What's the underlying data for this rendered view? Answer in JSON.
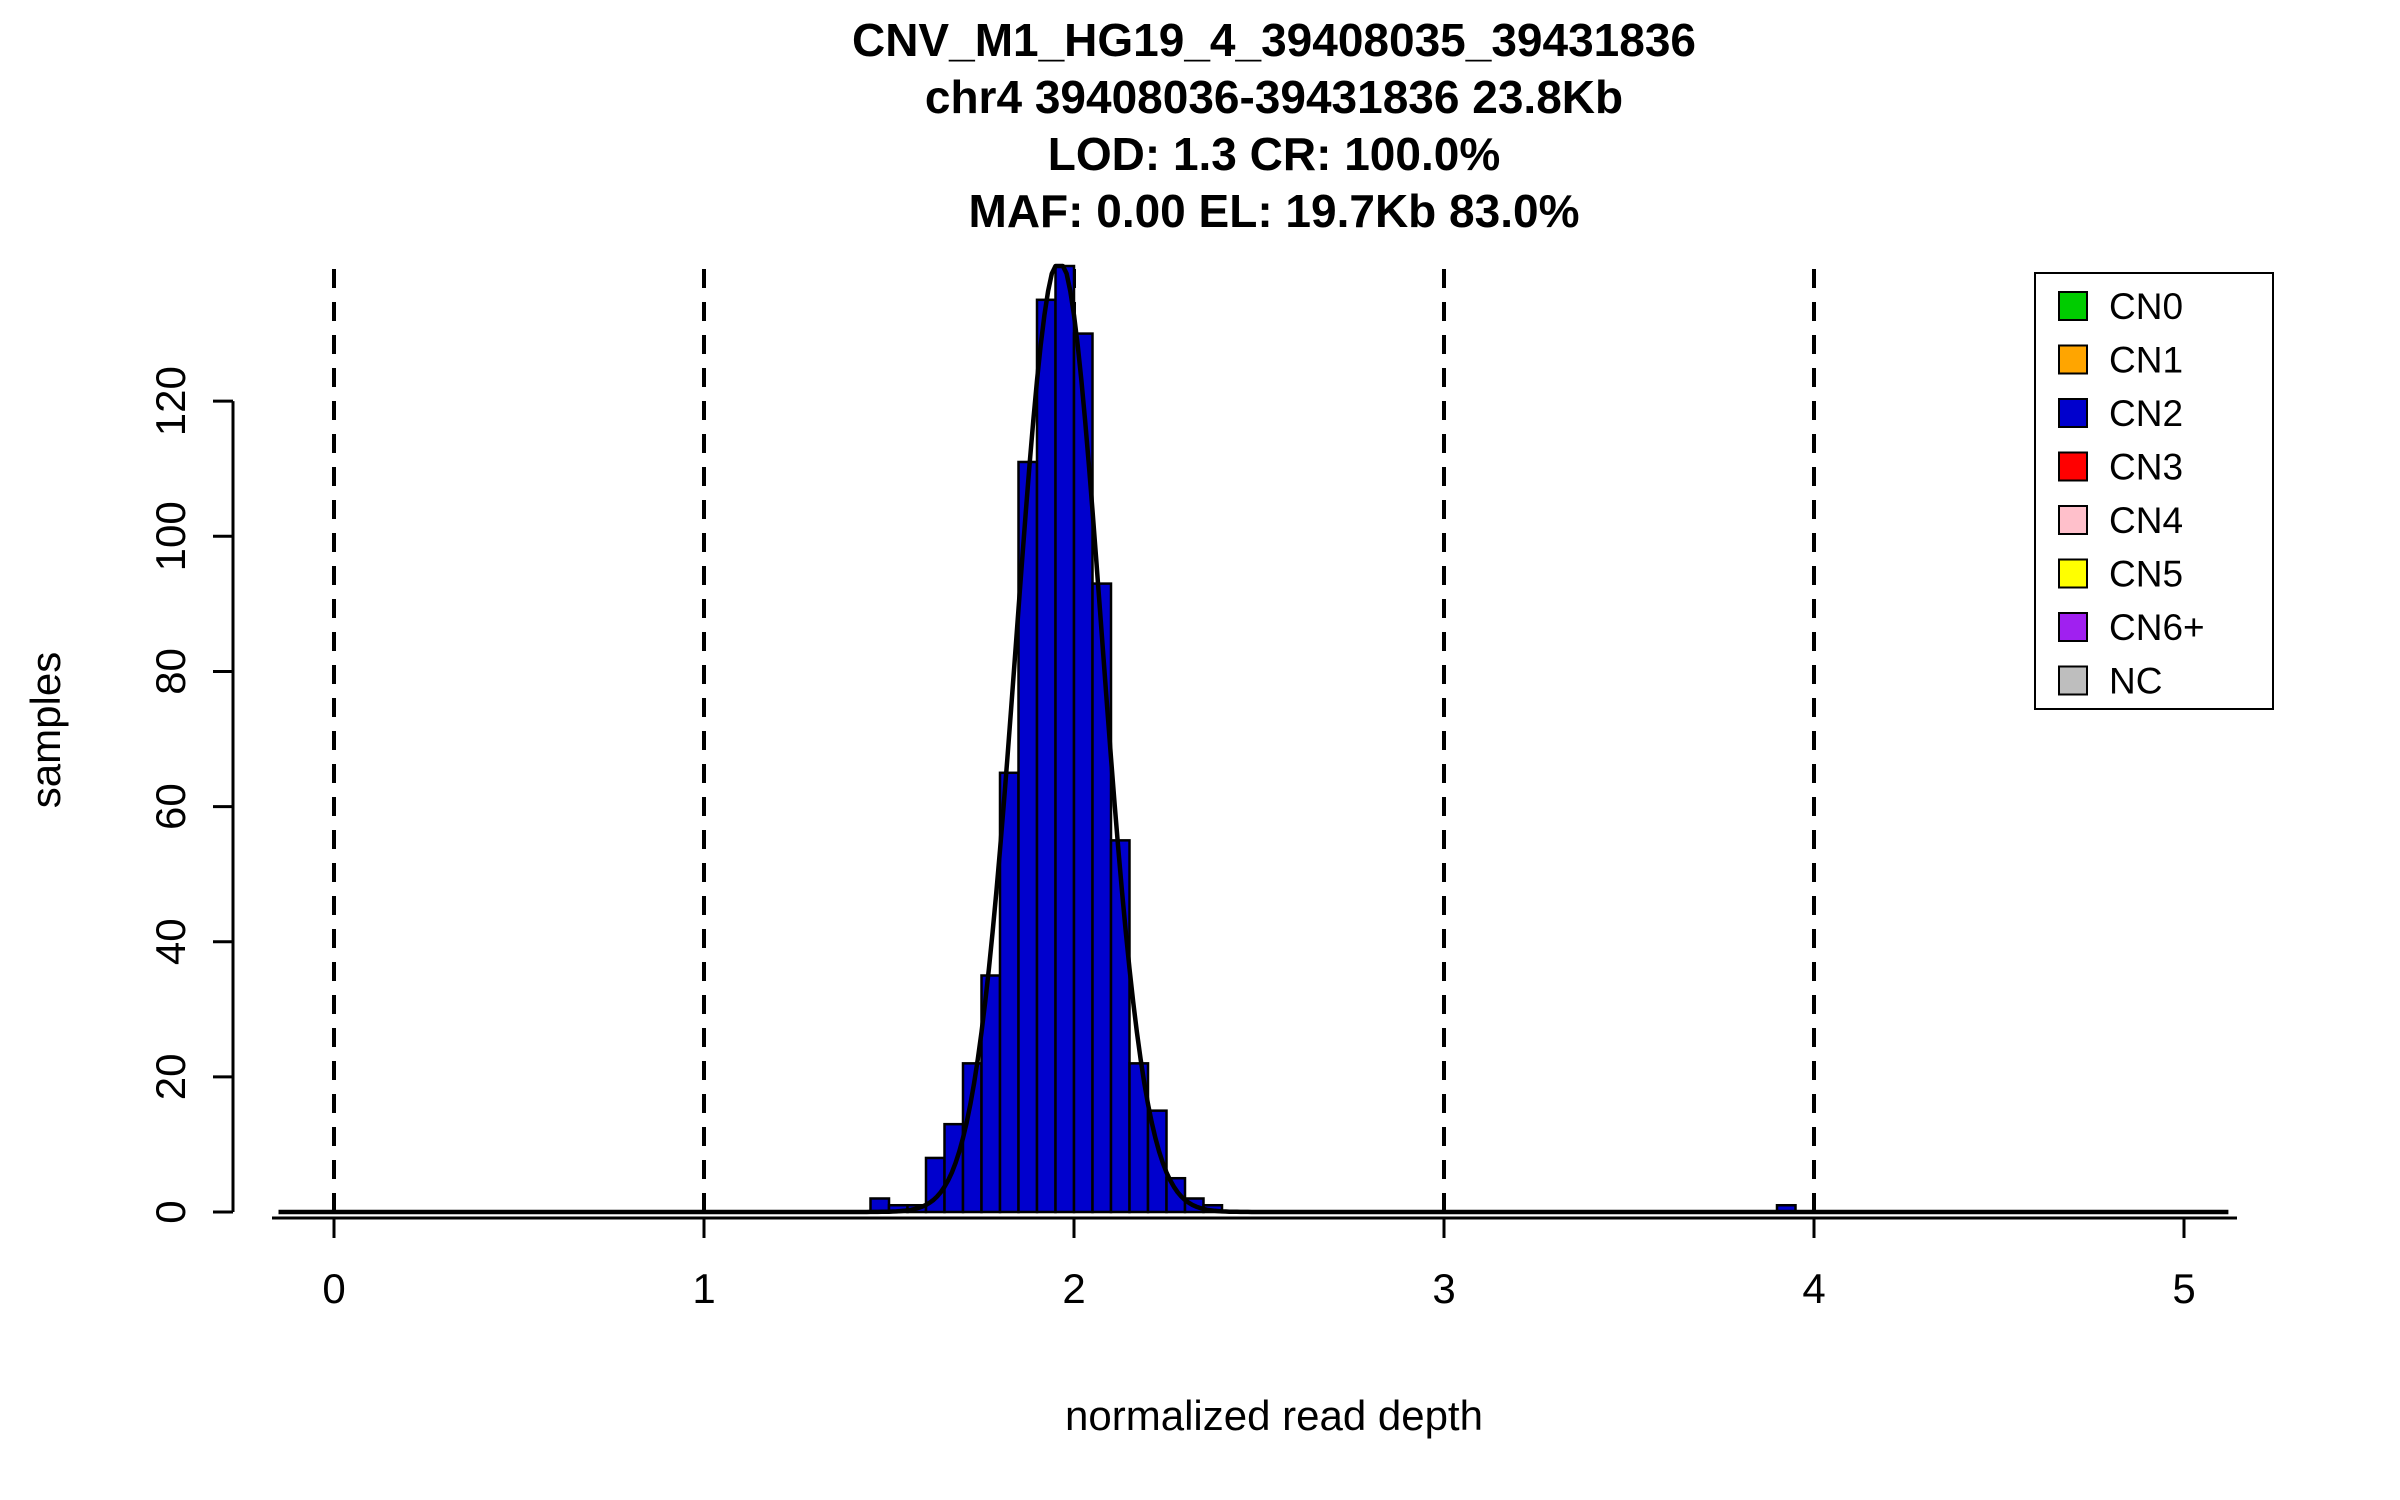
{
  "chart_data": {
    "type": "bar",
    "subtype": "histogram-with-density-fit",
    "title_lines": [
      "CNV_M1_HG19_4_39408035_39431836",
      "chr4 39408036-39431836 23.8Kb",
      "LOD: 1.3 CR: 100.0%",
      "MAF: 0.00 EL: 19.7Kb 83.0%"
    ],
    "xlabel": "normalized read depth",
    "ylabel": "samples",
    "x_ticks": [
      0,
      1,
      2,
      3,
      4,
      5
    ],
    "y_ticks": [
      0,
      20,
      40,
      60,
      80,
      100,
      120
    ],
    "xlim": [
      -0.17,
      5.15
    ],
    "ylim": [
      0,
      140
    ],
    "grid": false,
    "dashed_vlines": [
      0,
      1,
      2,
      3,
      4
    ],
    "bin_width": 0.05,
    "bar_color": "#0000CD",
    "bar_edge_color": "#000000",
    "bins": [
      {
        "x": 1.45,
        "count": 2
      },
      {
        "x": 1.5,
        "count": 1
      },
      {
        "x": 1.55,
        "count": 1
      },
      {
        "x": 1.6,
        "count": 8
      },
      {
        "x": 1.65,
        "count": 13
      },
      {
        "x": 1.7,
        "count": 22
      },
      {
        "x": 1.75,
        "count": 35
      },
      {
        "x": 1.8,
        "count": 65
      },
      {
        "x": 1.85,
        "count": 111
      },
      {
        "x": 1.9,
        "count": 135
      },
      {
        "x": 1.95,
        "count": 140
      },
      {
        "x": 2.0,
        "count": 130
      },
      {
        "x": 2.05,
        "count": 93
      },
      {
        "x": 2.1,
        "count": 55
      },
      {
        "x": 2.15,
        "count": 22
      },
      {
        "x": 2.2,
        "count": 15
      },
      {
        "x": 2.25,
        "count": 5
      },
      {
        "x": 2.3,
        "count": 2
      },
      {
        "x": 2.35,
        "count": 1
      },
      {
        "x": 3.9,
        "count": 1
      }
    ],
    "fit_curve": {
      "type": "gaussian",
      "mean": 1.96,
      "sd": 0.115,
      "peak": 141,
      "color": "#000000"
    },
    "legend": {
      "position": "top-right",
      "items": [
        {
          "label": "CN0",
          "color": "#00CC00"
        },
        {
          "label": "CN1",
          "color": "#FFA500"
        },
        {
          "label": "CN2",
          "color": "#0000CD"
        },
        {
          "label": "CN3",
          "color": "#FF0000"
        },
        {
          "label": "CN4",
          "color": "#FFC0CB"
        },
        {
          "label": "CN5",
          "color": "#FFFF00"
        },
        {
          "label": "CN6+",
          "color": "#A020F0"
        },
        {
          "label": "NC",
          "color": "#BEBEBE"
        }
      ]
    }
  }
}
